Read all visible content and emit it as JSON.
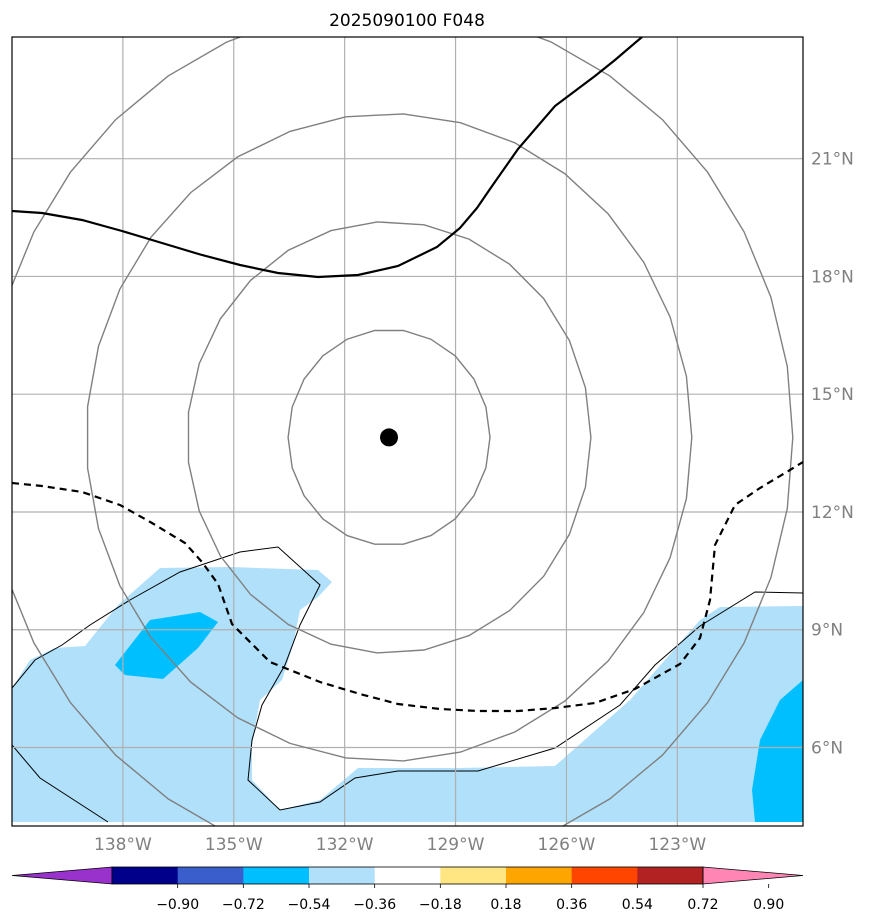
{
  "title": "2025090100 F048",
  "map": {
    "lon_range": [
      -141,
      -119.6
    ],
    "lat_range": [
      4,
      24.1
    ],
    "lon_ticks": [
      {
        "value": -138,
        "label": "138°W"
      },
      {
        "value": -135,
        "label": "135°W"
      },
      {
        "value": -132,
        "label": "132°W"
      },
      {
        "value": -129,
        "label": "129°W"
      },
      {
        "value": -126,
        "label": "126°W"
      },
      {
        "value": -123,
        "label": "123°W"
      }
    ],
    "lat_ticks": [
      {
        "value": 6,
        "label": "6°N"
      },
      {
        "value": 9,
        "label": "9°N"
      },
      {
        "value": 12,
        "label": "12°N"
      },
      {
        "value": 15,
        "label": "15°N"
      },
      {
        "value": 18,
        "label": "18°N"
      },
      {
        "value": 21,
        "label": "21°N"
      }
    ],
    "storm_center": {
      "lon": -130.8,
      "lat": 13.9
    },
    "range_ring_radii_deg": [
      2.75,
      5.5,
      8.25,
      11.0
    ],
    "ring_color": "#808080",
    "grid_color": "#b0b0b0"
  },
  "colorbar": {
    "tick_labels": [
      "−0.90",
      "−0.72",
      "−0.54",
      "−0.36",
      "−0.18",
      "0.18",
      "0.36",
      "0.54",
      "0.72",
      "0.90"
    ],
    "colors": [
      "#9932cc",
      "#00008b",
      "#3a5fcd",
      "#00bfff",
      "#b0e0fa",
      "#ffffff",
      "#ffe682",
      "#ffa500",
      "#ff4500",
      "#b22222",
      "#ff86b4"
    ]
  },
  "fill_colors": {
    "light_blue": "#b0e0fa",
    "deep_sky_blue": "#00bfff"
  }
}
